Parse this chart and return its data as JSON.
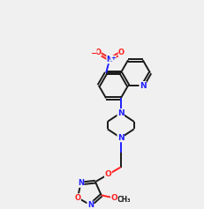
{
  "bg_color": "#f0f0f0",
  "bond_color": "#1a1a1a",
  "n_color": "#2020ff",
  "o_color": "#ff2020",
  "lw": 1.4,
  "dbo": 0.06
}
